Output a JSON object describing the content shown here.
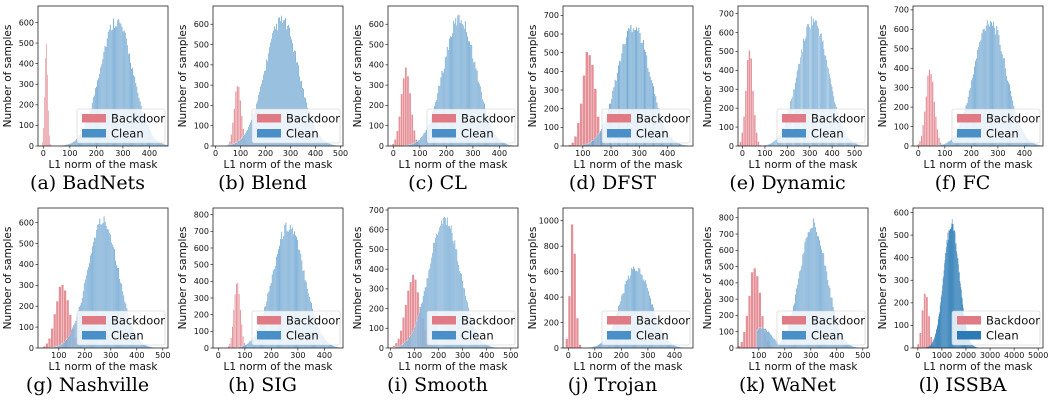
{
  "figure": {
    "colors": {
      "backdoor": "#e07b85",
      "clean": "#4a8fc7",
      "clean_dense": "#2c7bb6"
    },
    "legend_position": "lower-right"
  },
  "chart_data": [
    {
      "type": "bar",
      "caption": "(a) BadNets",
      "xlabel": "L1 norm of the mask",
      "ylabel": "Number of samples",
      "xlim": [
        -20,
        470
      ],
      "ylim": [
        0,
        680
      ],
      "xticks": [
        0,
        100,
        200,
        300,
        400
      ],
      "yticks": [
        0,
        100,
        200,
        300,
        400,
        500,
        600
      ],
      "series": [
        {
          "name": "Backdoor",
          "shape": "normal",
          "mean": 12,
          "sd": 6,
          "peak": 520,
          "bin": 4
        },
        {
          "name": "Clean",
          "shape": "normal",
          "mean": 275,
          "sd": 62,
          "peak": 640,
          "bin": 4
        }
      ],
      "grid": false,
      "legend": "lower-right"
    },
    {
      "type": "bar",
      "caption": "(b) Blend",
      "xlabel": "L1 norm of the mask",
      "ylabel": "Number of samples",
      "xlim": [
        -10,
        510
      ],
      "ylim": [
        0,
        690
      ],
      "xticks": [
        0,
        100,
        200,
        300,
        400,
        500
      ],
      "yticks": [
        0,
        100,
        200,
        300,
        400,
        500,
        600
      ],
      "series": [
        {
          "name": "Backdoor",
          "shape": "normal",
          "mean": 90,
          "sd": 14,
          "peak": 320,
          "bin": 6
        },
        {
          "name": "Clean",
          "shape": "normal",
          "mean": 265,
          "sd": 68,
          "peak": 650,
          "bin": 4
        }
      ],
      "grid": false,
      "legend": "lower-right"
    },
    {
      "type": "bar",
      "caption": "(c) CL",
      "xlabel": "L1 norm of the mask",
      "ylabel": "Number of samples",
      "xlim": [
        -20,
        470
      ],
      "ylim": [
        0,
        690
      ],
      "xticks": [
        0,
        100,
        200,
        300,
        400
      ],
      "yticks": [
        0,
        100,
        200,
        300,
        400,
        500,
        600
      ],
      "series": [
        {
          "name": "Backdoor",
          "shape": "normal",
          "mean": 48,
          "sd": 18,
          "peak": 390,
          "bin": 8
        },
        {
          "name": "Clean",
          "shape": "normal",
          "mean": 250,
          "sd": 62,
          "peak": 660,
          "bin": 4
        }
      ],
      "grid": false,
      "legend": "lower-right"
    },
    {
      "type": "bar",
      "caption": "(d) DFST",
      "xlabel": "L1 norm of the mask",
      "ylabel": "Number of samples",
      "xlim": [
        30,
        490
      ],
      "ylim": [
        0,
        750
      ],
      "xticks": [
        100,
        200,
        300,
        400
      ],
      "yticks": [
        0,
        100,
        200,
        300,
        400,
        500,
        600,
        700
      ],
      "series": [
        {
          "name": "Backdoor",
          "shape": "normal",
          "mean": 122,
          "sd": 22,
          "peak": 530,
          "bin": 10
        },
        {
          "name": "Clean",
          "shape": "normal",
          "mean": 280,
          "sd": 58,
          "peak": 680,
          "bin": 4
        }
      ],
      "grid": false,
      "legend": "lower-right"
    },
    {
      "type": "bar",
      "caption": "(e) Dynamic",
      "xlabel": "L1 norm of the mask",
      "ylabel": "Number of samples",
      "xlim": [
        -20,
        560
      ],
      "ylim": [
        0,
        740
      ],
      "xticks": [
        0,
        100,
        200,
        300,
        400,
        500
      ],
      "yticks": [
        0,
        100,
        200,
        300,
        400,
        500,
        600,
        700
      ],
      "series": [
        {
          "name": "Backdoor",
          "shape": "normal",
          "mean": 32,
          "sd": 16,
          "peak": 530,
          "bin": 8
        },
        {
          "name": "Clean",
          "shape": "normal",
          "mean": 315,
          "sd": 68,
          "peak": 700,
          "bin": 4
        }
      ],
      "grid": false,
      "legend": "lower-right"
    },
    {
      "type": "bar",
      "caption": "(f) FC",
      "xlabel": "L1 norm of the mask",
      "ylabel": "Number of samples",
      "xlim": [
        -20,
        470
      ],
      "ylim": [
        0,
        720
      ],
      "xticks": [
        0,
        100,
        200,
        300,
        400
      ],
      "yticks": [
        0,
        100,
        200,
        300,
        400,
        500,
        600,
        700
      ],
      "series": [
        {
          "name": "Backdoor",
          "shape": "normal",
          "mean": 45,
          "sd": 16,
          "peak": 410,
          "bin": 6
        },
        {
          "name": "Clean",
          "shape": "normal",
          "mean": 270,
          "sd": 60,
          "peak": 680,
          "bin": 4
        }
      ],
      "grid": false,
      "legend": "lower-right"
    },
    {
      "type": "bar",
      "caption": "(g) Nashville",
      "xlabel": "L1 norm of the mask",
      "ylabel": "Number of samples",
      "xlim": [
        20,
        520
      ],
      "ylim": [
        0,
        670
      ],
      "xticks": [
        100,
        200,
        300,
        400,
        500
      ],
      "yticks": [
        0,
        100,
        200,
        300,
        400,
        500,
        600
      ],
      "series": [
        {
          "name": "Backdoor",
          "shape": "normal",
          "mean": 115,
          "sd": 26,
          "peak": 320,
          "bin": 10
        },
        {
          "name": "Clean",
          "shape": "normal",
          "mean": 270,
          "sd": 60,
          "peak": 640,
          "bin": 4
        }
      ],
      "grid": false,
      "legend": "lower-right"
    },
    {
      "type": "bar",
      "caption": "(h) SIG",
      "xlabel": "L1 norm of the mask",
      "ylabel": "Number of samples",
      "xlim": [
        -20,
        470
      ],
      "ylim": [
        0,
        840
      ],
      "xticks": [
        0,
        100,
        200,
        300,
        400
      ],
      "yticks": [
        0,
        100,
        200,
        300,
        400,
        500,
        600,
        700,
        800
      ],
      "series": [
        {
          "name": "Backdoor",
          "shape": "normal",
          "mean": 72,
          "sd": 12,
          "peak": 410,
          "bin": 5
        },
        {
          "name": "Clean",
          "shape": "normal",
          "mean": 265,
          "sd": 60,
          "peak": 770,
          "bin": 4
        }
      ],
      "grid": false,
      "legend": "lower-right"
    },
    {
      "type": "bar",
      "caption": "(i) Smooth",
      "xlabel": "L1 norm of the mask",
      "ylabel": "Number of samples",
      "xlim": [
        -10,
        530
      ],
      "ylim": [
        0,
        710
      ],
      "xticks": [
        0,
        100,
        200,
        300,
        400,
        500
      ],
      "yticks": [
        0,
        100,
        200,
        300,
        400,
        500,
        600,
        700
      ],
      "series": [
        {
          "name": "Backdoor",
          "shape": "normal",
          "mean": 95,
          "sd": 30,
          "peak": 380,
          "bin": 10
        },
        {
          "name": "Clean",
          "shape": "normal",
          "mean": 225,
          "sd": 65,
          "peak": 690,
          "bin": 4
        }
      ],
      "grid": false,
      "legend": "lower-right"
    },
    {
      "type": "bar",
      "caption": "(j) Trojan",
      "xlabel": "L1 norm of the mask",
      "ylabel": "Number of samples",
      "xlim": [
        -20,
        470
      ],
      "ylim": [
        0,
        1100
      ],
      "xticks": [
        0,
        100,
        200,
        300,
        400
      ],
      "yticks": [
        0,
        200,
        400,
        600,
        800,
        1000
      ],
      "series": [
        {
          "name": "Backdoor",
          "shape": "normal",
          "mean": 18,
          "sd": 10,
          "peak": 1050,
          "bin": 10
        },
        {
          "name": "Clean",
          "shape": "normal",
          "mean": 255,
          "sd": 56,
          "peak": 660,
          "bin": 4
        }
      ],
      "grid": false,
      "legend": "lower-right"
    },
    {
      "type": "bar",
      "caption": "(k) WaNet",
      "xlabel": "L1 norm of the mask",
      "ylabel": "Number of samples",
      "xlim": [
        20,
        520
      ],
      "ylim": [
        0,
        860
      ],
      "xticks": [
        100,
        200,
        300,
        400,
        500
      ],
      "yticks": [
        0,
        100,
        200,
        300,
        400,
        500,
        600,
        700,
        800
      ],
      "series": [
        {
          "name": "Backdoor",
          "shape": "normal",
          "mean": 85,
          "sd": 22,
          "peak": 520,
          "bin": 10
        },
        {
          "name": "Clean",
          "shape": "bimodal",
          "mean": 310,
          "sd": 52,
          "peak": 800,
          "mean2": 110,
          "sd2": 40,
          "peak2": 130,
          "bin": 4
        }
      ],
      "grid": false,
      "legend": "lower-right"
    },
    {
      "type": "bar",
      "caption": "(l) ISSBA",
      "xlabel": "L1 norm of the mask",
      "ylabel": "Number of samples",
      "xlim": [
        -200,
        5200
      ],
      "ylim": [
        0,
        620
      ],
      "xticks": [
        0,
        1000,
        2000,
        3000,
        4000,
        5000
      ],
      "yticks": [
        0,
        100,
        200,
        300,
        400,
        500,
        600
      ],
      "series": [
        {
          "name": "Backdoor",
          "shape": "normal",
          "mean": 330,
          "sd": 130,
          "peak": 270,
          "bin": 90
        },
        {
          "name": "Clean",
          "shape": "normal",
          "mean": 1400,
          "sd": 320,
          "peak": 580,
          "bin": 20
        }
      ],
      "grid": false,
      "legend": "lower-right"
    }
  ]
}
